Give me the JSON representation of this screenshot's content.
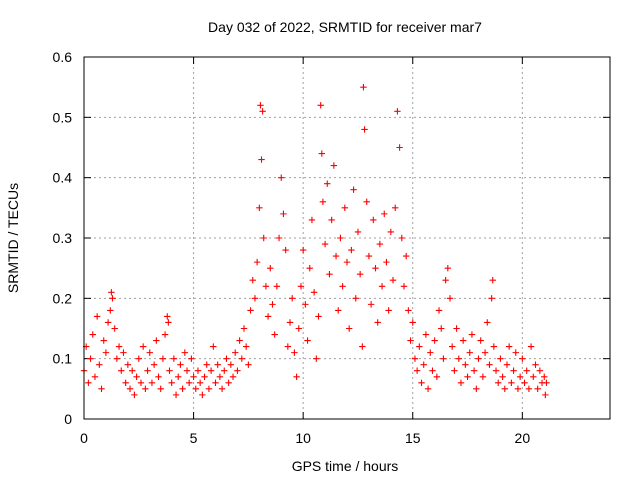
{
  "chart_data": {
    "type": "scatter",
    "title": "Day 032 of 2022, SRMTID for receiver mar7",
    "xlabel": "GPS time / hours",
    "ylabel": "SRMTID / TECUs",
    "xlim": [
      0,
      24
    ],
    "ylim": [
      0,
      0.6
    ],
    "xticks": [
      0,
      5,
      10,
      15,
      20
    ],
    "xtick_labels": [
      "0",
      "5",
      "10",
      "15",
      "20"
    ],
    "yticks": [
      0,
      0.1,
      0.2,
      0.3,
      0.4,
      0.5,
      0.6
    ],
    "ytick_labels": [
      "0",
      "0.1",
      "0.2",
      "0.3",
      "0.4",
      "0.5",
      "0.6"
    ],
    "grid": true,
    "marker": "plus",
    "color": "#ff0000",
    "series": [
      {
        "name": "SRMTID",
        "points": [
          [
            0.0,
            0.08
          ],
          [
            0.1,
            0.12
          ],
          [
            0.2,
            0.06
          ],
          [
            0.3,
            0.1
          ],
          [
            0.4,
            0.14
          ],
          [
            0.5,
            0.07
          ],
          [
            0.6,
            0.17
          ],
          [
            0.7,
            0.09
          ],
          [
            0.8,
            0.05
          ],
          [
            0.9,
            0.13
          ],
          [
            1.0,
            0.11
          ],
          [
            1.1,
            0.16
          ],
          [
            1.2,
            0.18
          ],
          [
            1.25,
            0.21
          ],
          [
            1.3,
            0.2
          ],
          [
            1.4,
            0.15
          ],
          [
            1.5,
            0.1
          ],
          [
            1.6,
            0.12
          ],
          [
            1.7,
            0.08
          ],
          [
            1.8,
            0.11
          ],
          [
            1.9,
            0.06
          ],
          [
            2.0,
            0.09
          ],
          [
            2.1,
            0.05
          ],
          [
            2.2,
            0.08
          ],
          [
            2.3,
            0.04
          ],
          [
            2.4,
            0.07
          ],
          [
            2.5,
            0.1
          ],
          [
            2.6,
            0.06
          ],
          [
            2.7,
            0.12
          ],
          [
            2.8,
            0.05
          ],
          [
            2.9,
            0.08
          ],
          [
            3.0,
            0.11
          ],
          [
            3.1,
            0.06
          ],
          [
            3.2,
            0.09
          ],
          [
            3.3,
            0.13
          ],
          [
            3.4,
            0.07
          ],
          [
            3.5,
            0.05
          ],
          [
            3.6,
            0.1
          ],
          [
            3.7,
            0.14
          ],
          [
            3.8,
            0.17
          ],
          [
            3.85,
            0.16
          ],
          [
            3.9,
            0.08
          ],
          [
            4.0,
            0.06
          ],
          [
            4.1,
            0.1
          ],
          [
            4.2,
            0.04
          ],
          [
            4.3,
            0.07
          ],
          [
            4.4,
            0.09
          ],
          [
            4.5,
            0.05
          ],
          [
            4.6,
            0.11
          ],
          [
            4.7,
            0.08
          ],
          [
            4.8,
            0.06
          ],
          [
            4.9,
            0.1
          ],
          [
            5.0,
            0.07
          ],
          [
            5.1,
            0.05
          ],
          [
            5.2,
            0.08
          ],
          [
            5.3,
            0.06
          ],
          [
            5.4,
            0.04
          ],
          [
            5.5,
            0.07
          ],
          [
            5.6,
            0.09
          ],
          [
            5.7,
            0.05
          ],
          [
            5.8,
            0.08
          ],
          [
            5.9,
            0.12
          ],
          [
            6.0,
            0.06
          ],
          [
            6.1,
            0.09
          ],
          [
            6.2,
            0.07
          ],
          [
            6.3,
            0.05
          ],
          [
            6.4,
            0.08
          ],
          [
            6.5,
            0.1
          ],
          [
            6.6,
            0.06
          ],
          [
            6.7,
            0.09
          ],
          [
            6.8,
            0.07
          ],
          [
            6.9,
            0.11
          ],
          [
            7.0,
            0.08
          ],
          [
            7.1,
            0.13
          ],
          [
            7.2,
            0.1
          ],
          [
            7.3,
            0.15
          ],
          [
            7.4,
            0.12
          ],
          [
            7.5,
            0.09
          ],
          [
            7.6,
            0.18
          ],
          [
            7.7,
            0.23
          ],
          [
            7.8,
            0.2
          ],
          [
            7.9,
            0.26
          ],
          [
            8.0,
            0.35
          ],
          [
            8.05,
            0.52
          ],
          [
            8.1,
            0.43
          ],
          [
            8.15,
            0.51
          ],
          [
            8.2,
            0.3
          ],
          [
            8.3,
            0.22
          ],
          [
            8.4,
            0.17
          ],
          [
            8.5,
            0.25
          ],
          [
            8.6,
            0.19
          ],
          [
            8.7,
            0.14
          ],
          [
            8.8,
            0.22
          ],
          [
            8.9,
            0.3
          ],
          [
            9.0,
            0.4
          ],
          [
            9.1,
            0.34
          ],
          [
            9.2,
            0.28
          ],
          [
            9.3,
            0.12
          ],
          [
            9.4,
            0.16
          ],
          [
            9.5,
            0.2
          ],
          [
            9.6,
            0.11
          ],
          [
            9.7,
            0.07
          ],
          [
            9.8,
            0.15
          ],
          [
            9.9,
            0.22
          ],
          [
            10.0,
            0.28
          ],
          [
            10.1,
            0.19
          ],
          [
            10.2,
            0.13
          ],
          [
            10.3,
            0.25
          ],
          [
            10.4,
            0.33
          ],
          [
            10.5,
            0.21
          ],
          [
            10.6,
            0.1
          ],
          [
            10.7,
            0.17
          ],
          [
            10.8,
            0.52
          ],
          [
            10.85,
            0.44
          ],
          [
            10.9,
            0.36
          ],
          [
            11.0,
            0.29
          ],
          [
            11.1,
            0.39
          ],
          [
            11.2,
            0.24
          ],
          [
            11.3,
            0.33
          ],
          [
            11.4,
            0.42
          ],
          [
            11.5,
            0.27
          ],
          [
            11.6,
            0.18
          ],
          [
            11.7,
            0.3
          ],
          [
            11.8,
            0.22
          ],
          [
            11.9,
            0.35
          ],
          [
            12.0,
            0.26
          ],
          [
            12.1,
            0.15
          ],
          [
            12.2,
            0.28
          ],
          [
            12.3,
            0.38
          ],
          [
            12.4,
            0.2
          ],
          [
            12.5,
            0.31
          ],
          [
            12.6,
            0.24
          ],
          [
            12.7,
            0.12
          ],
          [
            12.75,
            0.55
          ],
          [
            12.8,
            0.48
          ],
          [
            12.9,
            0.36
          ],
          [
            13.0,
            0.27
          ],
          [
            13.1,
            0.19
          ],
          [
            13.2,
            0.33
          ],
          [
            13.3,
            0.25
          ],
          [
            13.4,
            0.16
          ],
          [
            13.5,
            0.29
          ],
          [
            13.6,
            0.22
          ],
          [
            13.7,
            0.34
          ],
          [
            13.8,
            0.26
          ],
          [
            13.9,
            0.18
          ],
          [
            14.0,
            0.31
          ],
          [
            14.1,
            0.23
          ],
          [
            14.2,
            0.35
          ],
          [
            14.3,
            0.51
          ],
          [
            14.4,
            0.45
          ],
          [
            14.5,
            0.3
          ],
          [
            14.6,
            0.22
          ],
          [
            14.7,
            0.27
          ],
          [
            14.8,
            0.18
          ],
          [
            14.9,
            0.13
          ],
          [
            15.0,
            0.16
          ],
          [
            15.1,
            0.1
          ],
          [
            15.2,
            0.08
          ],
          [
            15.3,
            0.12
          ],
          [
            15.4,
            0.06
          ],
          [
            15.5,
            0.09
          ],
          [
            15.6,
            0.14
          ],
          [
            15.7,
            0.05
          ],
          [
            15.8,
            0.11
          ],
          [
            15.9,
            0.08
          ],
          [
            16.0,
            0.13
          ],
          [
            16.1,
            0.07
          ],
          [
            16.2,
            0.18
          ],
          [
            16.3,
            0.15
          ],
          [
            16.4,
            0.1
          ],
          [
            16.5,
            0.23
          ],
          [
            16.6,
            0.25
          ],
          [
            16.7,
            0.2
          ],
          [
            16.8,
            0.12
          ],
          [
            16.9,
            0.08
          ],
          [
            17.0,
            0.15
          ],
          [
            17.1,
            0.1
          ],
          [
            17.2,
            0.06
          ],
          [
            17.3,
            0.13
          ],
          [
            17.4,
            0.09
          ],
          [
            17.5,
            0.07
          ],
          [
            17.6,
            0.11
          ],
          [
            17.7,
            0.14
          ],
          [
            17.8,
            0.08
          ],
          [
            17.9,
            0.05
          ],
          [
            18.0,
            0.1
          ],
          [
            18.1,
            0.13
          ],
          [
            18.2,
            0.07
          ],
          [
            18.3,
            0.11
          ],
          [
            18.4,
            0.16
          ],
          [
            18.5,
            0.09
          ],
          [
            18.6,
            0.2
          ],
          [
            18.65,
            0.23
          ],
          [
            18.7,
            0.12
          ],
          [
            18.8,
            0.08
          ],
          [
            18.9,
            0.06
          ],
          [
            19.0,
            0.1
          ],
          [
            19.1,
            0.07
          ],
          [
            19.2,
            0.05
          ],
          [
            19.3,
            0.09
          ],
          [
            19.4,
            0.12
          ],
          [
            19.5,
            0.06
          ],
          [
            19.6,
            0.08
          ],
          [
            19.7,
            0.11
          ],
          [
            19.8,
            0.05
          ],
          [
            19.9,
            0.07
          ],
          [
            20.0,
            0.1
          ],
          [
            20.1,
            0.06
          ],
          [
            20.2,
            0.08
          ],
          [
            20.3,
            0.05
          ],
          [
            20.4,
            0.12
          ],
          [
            20.5,
            0.07
          ],
          [
            20.6,
            0.09
          ],
          [
            20.7,
            0.05
          ],
          [
            20.8,
            0.08
          ],
          [
            20.9,
            0.06
          ],
          [
            21.0,
            0.07
          ],
          [
            21.05,
            0.04
          ],
          [
            21.1,
            0.06
          ]
        ]
      }
    ]
  }
}
